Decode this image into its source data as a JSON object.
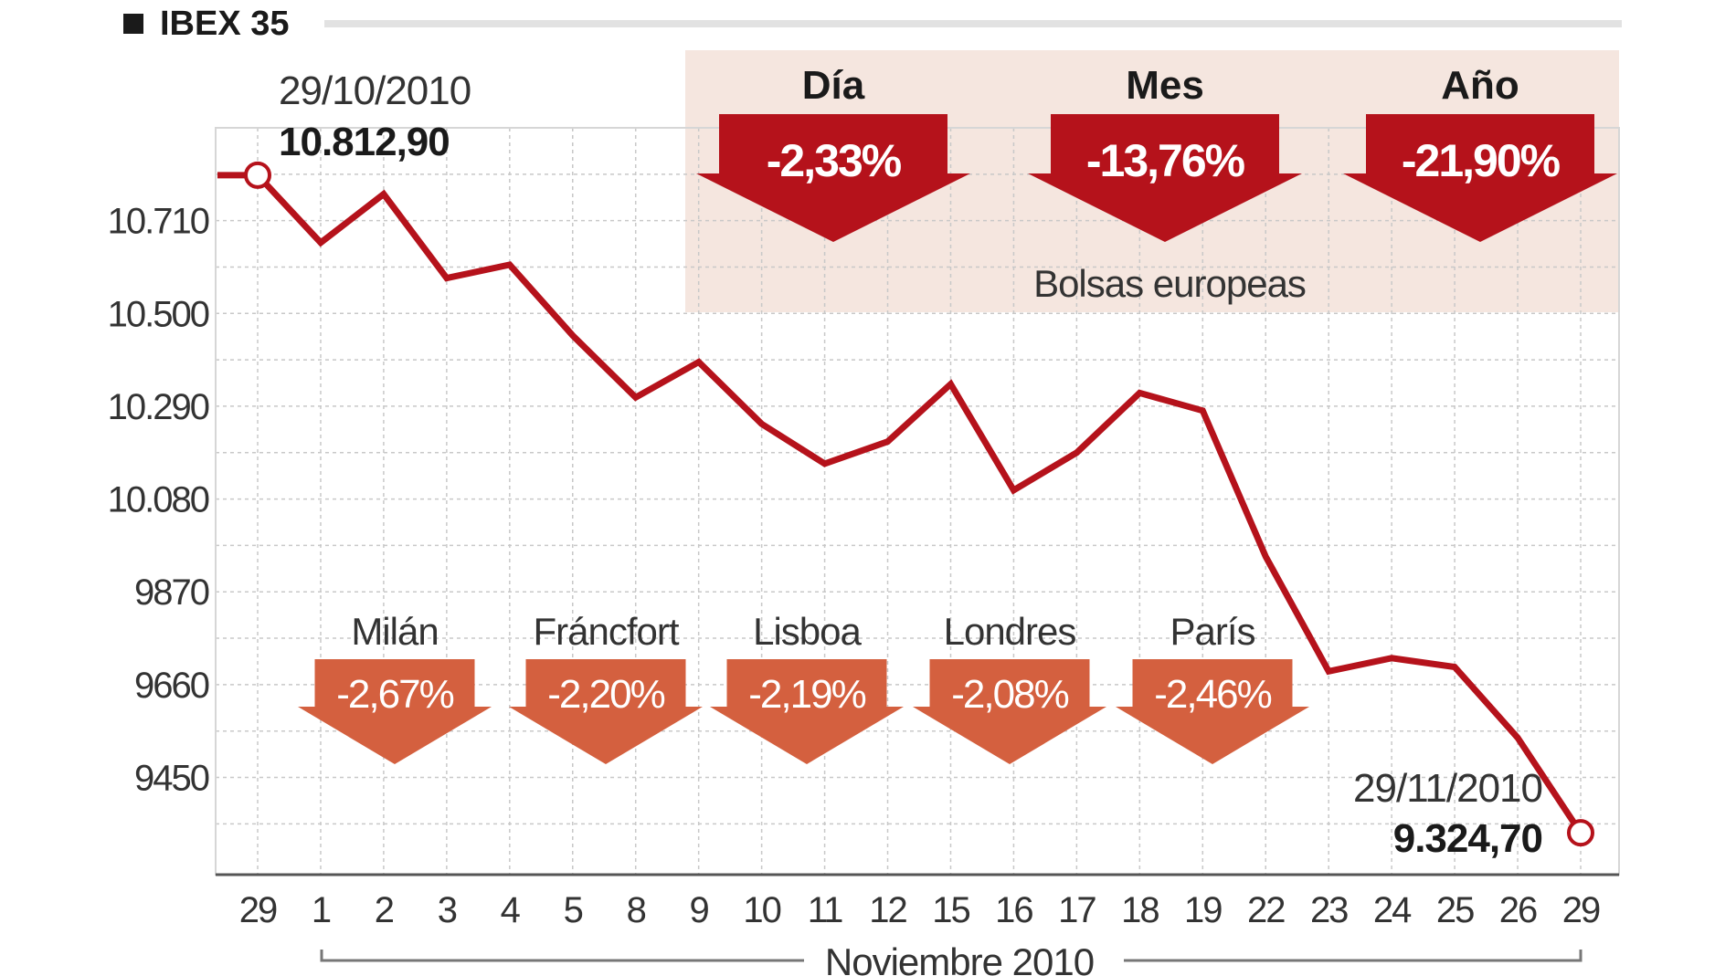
{
  "chart_data": {
    "type": "line",
    "title": "IBEX 35",
    "x": [
      "29",
      "1",
      "2",
      "3",
      "4",
      "5",
      "8",
      "9",
      "10",
      "11",
      "12",
      "15",
      "16",
      "17",
      "18",
      "19",
      "22",
      "23",
      "24",
      "25",
      "26",
      "29"
    ],
    "values": [
      10812.9,
      10660,
      10770,
      10580,
      10610,
      10450,
      10310,
      10390,
      10250,
      10160,
      10210,
      10340,
      10100,
      10185,
      10320,
      10280,
      9950,
      9690,
      9720,
      9700,
      9540,
      9324.7
    ],
    "yticks": [
      "10.710",
      "10.500",
      "10.290",
      "10.080",
      "9870",
      "9660",
      "9450"
    ],
    "ytick_values": [
      10710,
      10500,
      10290,
      10080,
      9870,
      9660,
      9450
    ],
    "xlabel": "Noviembre 2010",
    "ylim": [
      9230,
      10920
    ],
    "grid": true,
    "start": {
      "date": "29/10/2010",
      "value": "10.812,90"
    },
    "end": {
      "date": "29/11/2010",
      "value": "9.324,70"
    },
    "summary_title": "Bolsas europeas",
    "summary": [
      {
        "label": "Día",
        "value": "-2,33%"
      },
      {
        "label": "Mes",
        "value": "-13,76%"
      },
      {
        "label": "Año",
        "value": "-21,90%"
      }
    ],
    "markets": [
      {
        "label": "Milán",
        "value": "-2,67%"
      },
      {
        "label": "Fráncfort",
        "value": "-2,20%"
      },
      {
        "label": "Lisboa",
        "value": "-2,19%"
      },
      {
        "label": "Londres",
        "value": "-2,08%"
      },
      {
        "label": "París",
        "value": "-2,46%"
      }
    ]
  },
  "colors": {
    "line": "#b5121b",
    "big_arrow": "#b5121b",
    "small_arrow": "#d4603f",
    "panel": "#f5e6df",
    "grid": "#c8c8c8"
  }
}
